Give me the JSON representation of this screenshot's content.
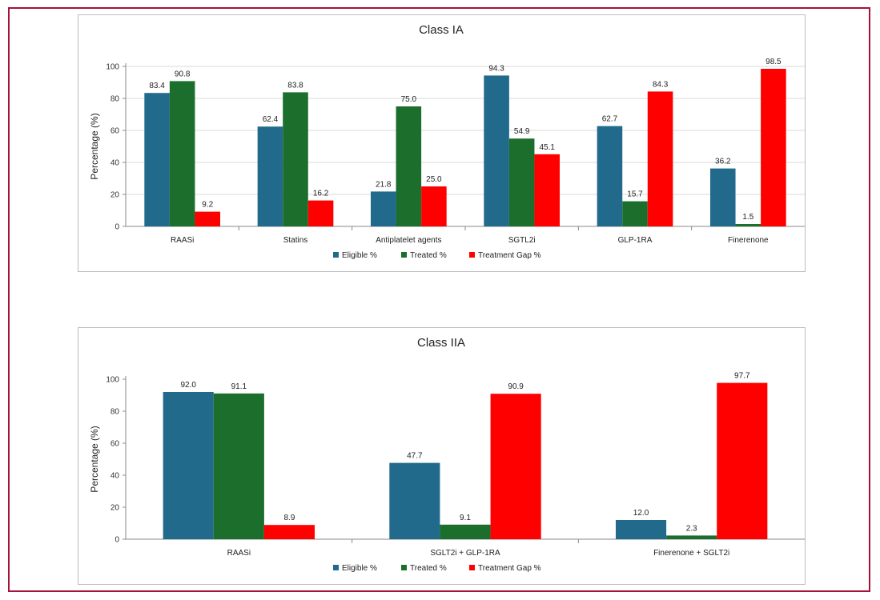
{
  "chart_data": [
    {
      "type": "bar",
      "title": "Class IA",
      "ylabel": "Percentage (%)",
      "xlabel": "",
      "ylim": [
        0,
        100
      ],
      "yticks": [
        0,
        20,
        40,
        60,
        80,
        100
      ],
      "grid": true,
      "legend_position": "bottom",
      "categories": [
        "RAASi",
        "Statins",
        "Antiplatelet agents",
        "SGTL2i",
        "GLP-1RA",
        "Finerenone"
      ],
      "series": [
        {
          "name": "Eligible %",
          "color": "#226a8c",
          "values": [
            83.4,
            62.4,
            21.8,
            94.3,
            62.7,
            36.2
          ]
        },
        {
          "name": "Treated %",
          "color": "#1b6e2c",
          "values": [
            90.8,
            83.8,
            75.0,
            54.9,
            15.7,
            1.5
          ]
        },
        {
          "name": "Treatment Gap %",
          "color": "#ff0000",
          "values": [
            9.2,
            16.2,
            25.0,
            45.1,
            84.3,
            98.5
          ]
        }
      ]
    },
    {
      "type": "bar",
      "title": "Class IIA",
      "ylabel": "Percentage (%)",
      "xlabel": "",
      "ylim": [
        0,
        100
      ],
      "yticks": [
        0,
        20,
        40,
        60,
        80,
        100
      ],
      "grid": false,
      "legend_position": "bottom",
      "categories": [
        "RAASi",
        "SGLT2i  + GLP-1RA",
        "Finerenone + SGLT2i"
      ],
      "series": [
        {
          "name": "Eligible %",
          "color": "#226a8c",
          "values": [
            92.0,
            47.7,
            12.0
          ]
        },
        {
          "name": "Treated %",
          "color": "#1b6e2c",
          "values": [
            91.1,
            9.1,
            2.3
          ]
        },
        {
          "name": "Treatment Gap %",
          "color": "#ff0000",
          "values": [
            8.9,
            90.9,
            97.7
          ]
        }
      ]
    }
  ]
}
